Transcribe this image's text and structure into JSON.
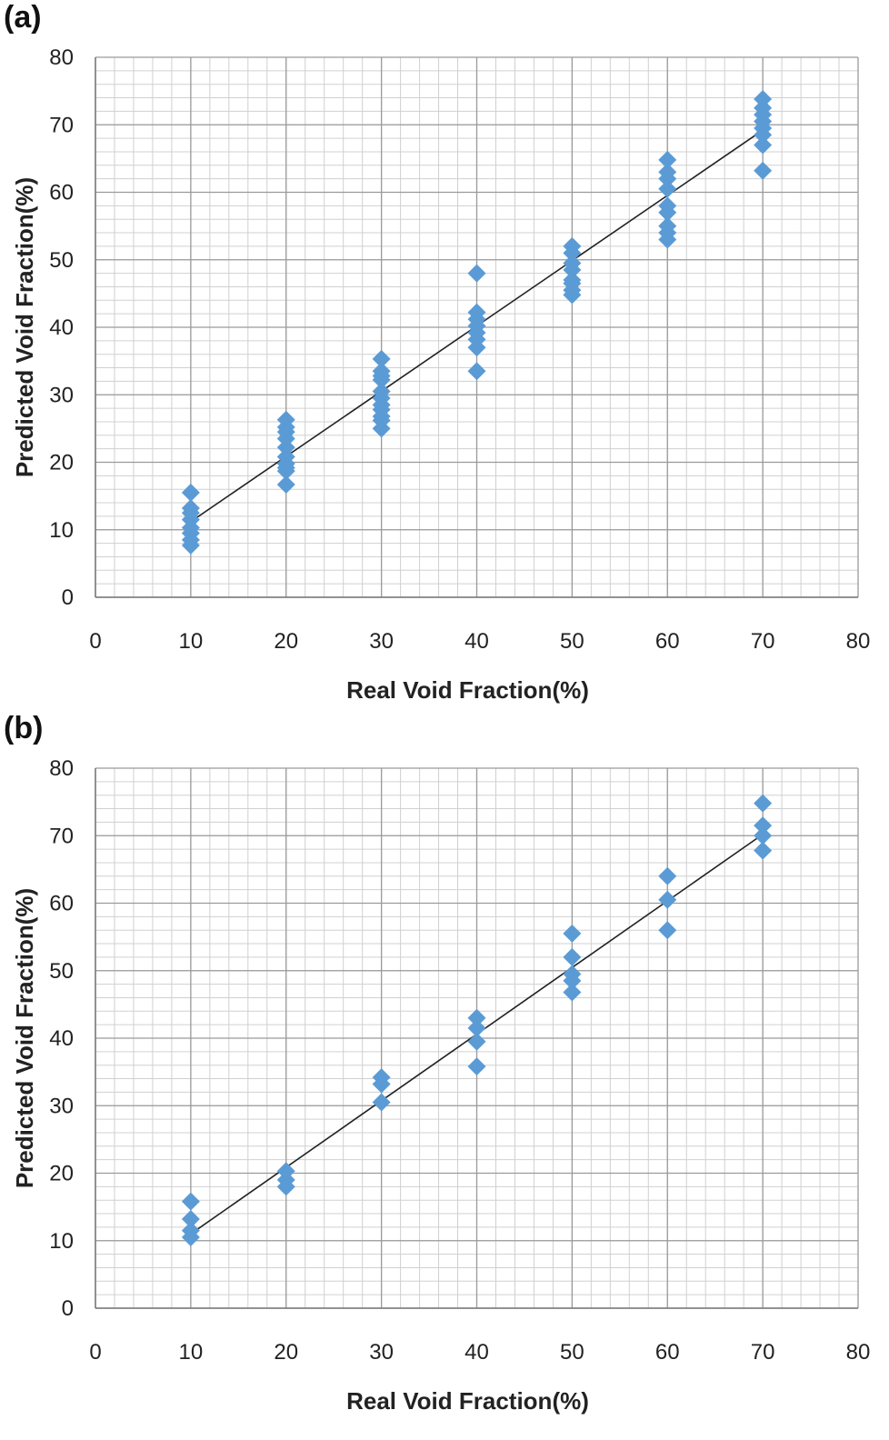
{
  "chart_data": [
    {
      "type": "scatter",
      "panel_label": "(a)",
      "xlabel": "Real Void Fraction(%)",
      "ylabel": "Predicted Void Fraction(%)",
      "xlim": [
        0,
        80
      ],
      "ylim": [
        0,
        80
      ],
      "x_ticks": [
        "0",
        "10",
        "20",
        "30",
        "40",
        "50",
        "60",
        "70",
        "80"
      ],
      "y_ticks": [
        "0",
        "10",
        "20",
        "30",
        "40",
        "50",
        "60",
        "70",
        "80"
      ],
      "grid": true,
      "minor_grid": true,
      "marker": "diamond",
      "marker_color": "#5b9bd5",
      "series": [
        {
          "x": [
            10,
            10,
            10,
            10,
            10,
            10,
            10,
            10,
            20,
            20,
            20,
            20,
            20,
            20,
            20,
            20,
            20,
            20,
            30,
            30,
            30,
            30,
            30,
            30,
            30,
            30,
            30,
            30,
            30,
            40,
            40,
            40,
            40,
            40,
            40,
            40,
            40,
            50,
            50,
            50,
            50,
            50,
            50,
            50,
            50,
            60,
            60,
            60,
            60,
            60,
            60,
            60,
            60,
            60,
            70,
            70,
            70,
            70,
            70,
            70,
            70,
            70
          ],
          "y": [
            15.5,
            13.2,
            12.5,
            11.5,
            10.3,
            9.5,
            8.5,
            7.7,
            26.3,
            25.2,
            24.5,
            23.5,
            22.2,
            20.8,
            19.8,
            19.2,
            18.7,
            16.7,
            35.3,
            33.5,
            32.8,
            32.2,
            30.5,
            29.5,
            28.5,
            27.8,
            26.8,
            26.2,
            25.0,
            48.0,
            42.2,
            41.2,
            40.2,
            39.2,
            38.2,
            37.0,
            33.5,
            52.0,
            51.0,
            49.5,
            48.5,
            47.0,
            46.5,
            45.5,
            44.8,
            64.8,
            63.0,
            62.0,
            60.5,
            58.0,
            57.0,
            55.0,
            54.0,
            53.0,
            73.8,
            72.5,
            71.5,
            70.5,
            69.5,
            68.5,
            67.0,
            63.2
          ]
        }
      ],
      "fit_line": {
        "x": [
          10,
          70
        ],
        "y": [
          11.2,
          69.2
        ]
      }
    },
    {
      "type": "scatter",
      "panel_label": "(b)",
      "xlabel": "Real Void Fraction(%)",
      "ylabel": "Predicted Void Fraction(%)",
      "xlim": [
        0,
        80
      ],
      "ylim": [
        0,
        80
      ],
      "x_ticks": [
        "0",
        "10",
        "20",
        "30",
        "40",
        "50",
        "60",
        "70",
        "80"
      ],
      "y_ticks": [
        "0",
        "10",
        "20",
        "30",
        "40",
        "50",
        "60",
        "70",
        "80"
      ],
      "grid": true,
      "minor_grid": true,
      "marker": "diamond",
      "marker_color": "#5b9bd5",
      "series": [
        {
          "x": [
            10,
            10,
            10,
            10,
            20,
            20,
            20,
            30,
            30,
            30,
            40,
            40,
            40,
            40,
            50,
            50,
            50,
            50,
            50,
            60,
            60,
            60,
            70,
            70,
            70,
            70
          ],
          "y": [
            15.8,
            13.2,
            11.5,
            10.5,
            20.3,
            19.0,
            18.0,
            34.2,
            33.2,
            30.5,
            43.0,
            41.5,
            39.5,
            35.8,
            55.5,
            52.0,
            49.5,
            48.5,
            46.8,
            64.0,
            60.5,
            56.0,
            74.8,
            71.5,
            70.0,
            67.8
          ]
        }
      ],
      "fit_line": {
        "x": [
          10,
          70
        ],
        "y": [
          11.0,
          70.2
        ]
      }
    }
  ]
}
